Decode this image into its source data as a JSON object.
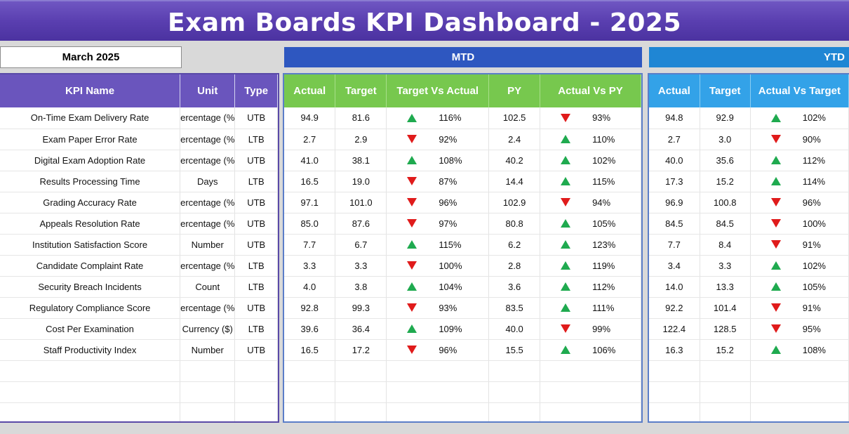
{
  "title": "Exam Boards KPI Dashboard - 2025",
  "month": "March 2025",
  "bands": {
    "mtd": "MTD",
    "ytd": "YTD"
  },
  "headers": {
    "kpi": [
      "KPI Name",
      "Unit",
      "Type"
    ],
    "mtd": [
      "Actual",
      "Target",
      "Target Vs Actual",
      "PY",
      "Actual Vs PY"
    ],
    "ytd": [
      "Actual",
      "Target",
      "Actual Vs Target"
    ]
  },
  "colors": {
    "up": "#1faa4f",
    "down": "#e01b1b"
  },
  "rows": [
    {
      "name": "On-Time Exam Delivery Rate",
      "unit": "ercentage (%",
      "type": "UTB",
      "mtd": {
        "actual": "94.9",
        "target": "81.6",
        "tva_dir": "up",
        "tva": "116%",
        "py": "102.5",
        "avp_dir": "down",
        "avp": "93%"
      },
      "ytd": {
        "actual": "94.8",
        "target": "92.9",
        "avt_dir": "up",
        "avt": "102%"
      }
    },
    {
      "name": "Exam Paper Error Rate",
      "unit": "ercentage (%",
      "type": "LTB",
      "mtd": {
        "actual": "2.7",
        "target": "2.9",
        "tva_dir": "down",
        "tva": "92%",
        "py": "2.4",
        "avp_dir": "up",
        "avp": "110%"
      },
      "ytd": {
        "actual": "2.7",
        "target": "3.0",
        "avt_dir": "down",
        "avt": "90%"
      }
    },
    {
      "name": "Digital Exam Adoption Rate",
      "unit": "ercentage (%",
      "type": "UTB",
      "mtd": {
        "actual": "41.0",
        "target": "38.1",
        "tva_dir": "up",
        "tva": "108%",
        "py": "40.2",
        "avp_dir": "up",
        "avp": "102%"
      },
      "ytd": {
        "actual": "40.0",
        "target": "35.6",
        "avt_dir": "up",
        "avt": "112%"
      }
    },
    {
      "name": "Results Processing Time",
      "unit": "Days",
      "type": "LTB",
      "mtd": {
        "actual": "16.5",
        "target": "19.0",
        "tva_dir": "down",
        "tva": "87%",
        "py": "14.4",
        "avp_dir": "up",
        "avp": "115%"
      },
      "ytd": {
        "actual": "17.3",
        "target": "15.2",
        "avt_dir": "up",
        "avt": "114%"
      }
    },
    {
      "name": "Grading Accuracy Rate",
      "unit": "ercentage (%",
      "type": "UTB",
      "mtd": {
        "actual": "97.1",
        "target": "101.0",
        "tva_dir": "down",
        "tva": "96%",
        "py": "102.9",
        "avp_dir": "down",
        "avp": "94%"
      },
      "ytd": {
        "actual": "96.9",
        "target": "100.8",
        "avt_dir": "down",
        "avt": "96%"
      }
    },
    {
      "name": "Appeals Resolution Rate",
      "unit": "ercentage (%",
      "type": "UTB",
      "mtd": {
        "actual": "85.0",
        "target": "87.6",
        "tva_dir": "down",
        "tva": "97%",
        "py": "80.8",
        "avp_dir": "up",
        "avp": "105%"
      },
      "ytd": {
        "actual": "84.5",
        "target": "84.5",
        "avt_dir": "down",
        "avt": "100%"
      }
    },
    {
      "name": "Institution Satisfaction Score",
      "unit": "Number",
      "type": "UTB",
      "mtd": {
        "actual": "7.7",
        "target": "6.7",
        "tva_dir": "up",
        "tva": "115%",
        "py": "6.2",
        "avp_dir": "up",
        "avp": "123%"
      },
      "ytd": {
        "actual": "7.7",
        "target": "8.4",
        "avt_dir": "down",
        "avt": "91%"
      }
    },
    {
      "name": "Candidate Complaint Rate",
      "unit": "ercentage (%",
      "type": "LTB",
      "mtd": {
        "actual": "3.3",
        "target": "3.3",
        "tva_dir": "down",
        "tva": "100%",
        "py": "2.8",
        "avp_dir": "up",
        "avp": "119%"
      },
      "ytd": {
        "actual": "3.4",
        "target": "3.3",
        "avt_dir": "up",
        "avt": "102%"
      }
    },
    {
      "name": "Security Breach Incidents",
      "unit": "Count",
      "type": "LTB",
      "mtd": {
        "actual": "4.0",
        "target": "3.8",
        "tva_dir": "up",
        "tva": "104%",
        "py": "3.6",
        "avp_dir": "up",
        "avp": "112%"
      },
      "ytd": {
        "actual": "14.0",
        "target": "13.3",
        "avt_dir": "up",
        "avt": "105%"
      }
    },
    {
      "name": "Regulatory Compliance Score",
      "unit": "ercentage (%",
      "type": "UTB",
      "mtd": {
        "actual": "92.8",
        "target": "99.3",
        "tva_dir": "down",
        "tva": "93%",
        "py": "83.5",
        "avp_dir": "up",
        "avp": "111%"
      },
      "ytd": {
        "actual": "92.2",
        "target": "101.4",
        "avt_dir": "down",
        "avt": "91%"
      }
    },
    {
      "name": "Cost Per Examination",
      "unit": "Currency ($)",
      "type": "LTB",
      "mtd": {
        "actual": "39.6",
        "target": "36.4",
        "tva_dir": "up",
        "tva": "109%",
        "py": "40.0",
        "avp_dir": "down",
        "avp": "99%"
      },
      "ytd": {
        "actual": "122.4",
        "target": "128.5",
        "avt_dir": "down",
        "avt": "95%"
      }
    },
    {
      "name": "Staff Productivity Index",
      "unit": "Number",
      "type": "UTB",
      "mtd": {
        "actual": "16.5",
        "target": "17.2",
        "tva_dir": "down",
        "tva": "96%",
        "py": "15.5",
        "avp_dir": "up",
        "avp": "106%"
      },
      "ytd": {
        "actual": "16.3",
        "target": "15.2",
        "avt_dir": "up",
        "avt": "108%"
      }
    }
  ]
}
